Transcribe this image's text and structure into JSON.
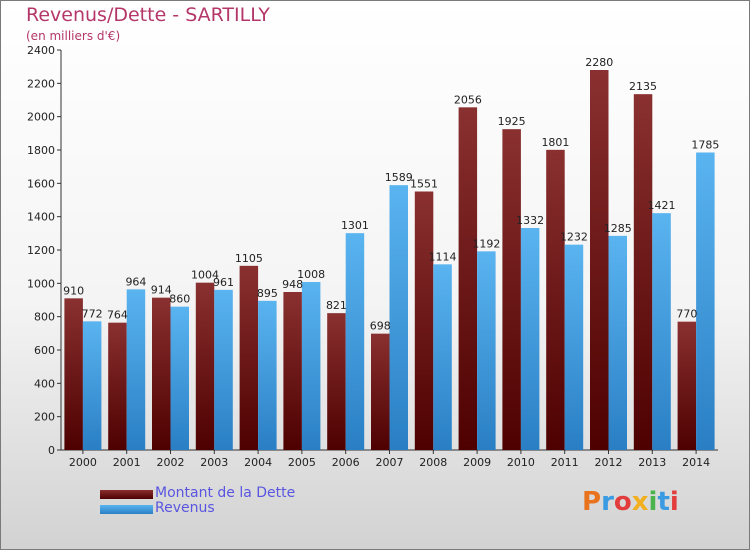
{
  "header": {
    "title": "Revenus/Dette - SARTILLY",
    "subtitle": "(en milliers d'€)"
  },
  "chart_data": {
    "type": "bar",
    "categories": [
      "2000",
      "2001",
      "2002",
      "2003",
      "2004",
      "2005",
      "2006",
      "2007",
      "2008",
      "2009",
      "2010",
      "2011",
      "2012",
      "2013",
      "2014"
    ],
    "series": [
      {
        "name": "Montant de la Dette",
        "color": "#7a1414",
        "values": [
          910,
          764,
          914,
          1004,
          1105,
          948,
          821,
          698,
          1551,
          2056,
          1925,
          1801,
          2280,
          2135,
          770
        ]
      },
      {
        "name": "Revenus",
        "color": "#3a9be3",
        "values": [
          772,
          964,
          860,
          961,
          895,
          1008,
          1301,
          1589,
          1114,
          1192,
          1332,
          1232,
          1285,
          1421,
          1785
        ]
      }
    ],
    "ylim": [
      0,
      2400
    ],
    "yticks": [
      0,
      200,
      400,
      600,
      800,
      1000,
      1200,
      1400,
      1600,
      1800,
      2000,
      2200,
      2400
    ],
    "grid": false,
    "legend_position": "bottom-left"
  },
  "logo": {
    "text": "Proxiti",
    "colors": [
      "#e8731c",
      "#3a9be3",
      "#e23c3c",
      "#f2b01e",
      "#4bb34b",
      "#3a9be3",
      "#e23c3c"
    ]
  }
}
